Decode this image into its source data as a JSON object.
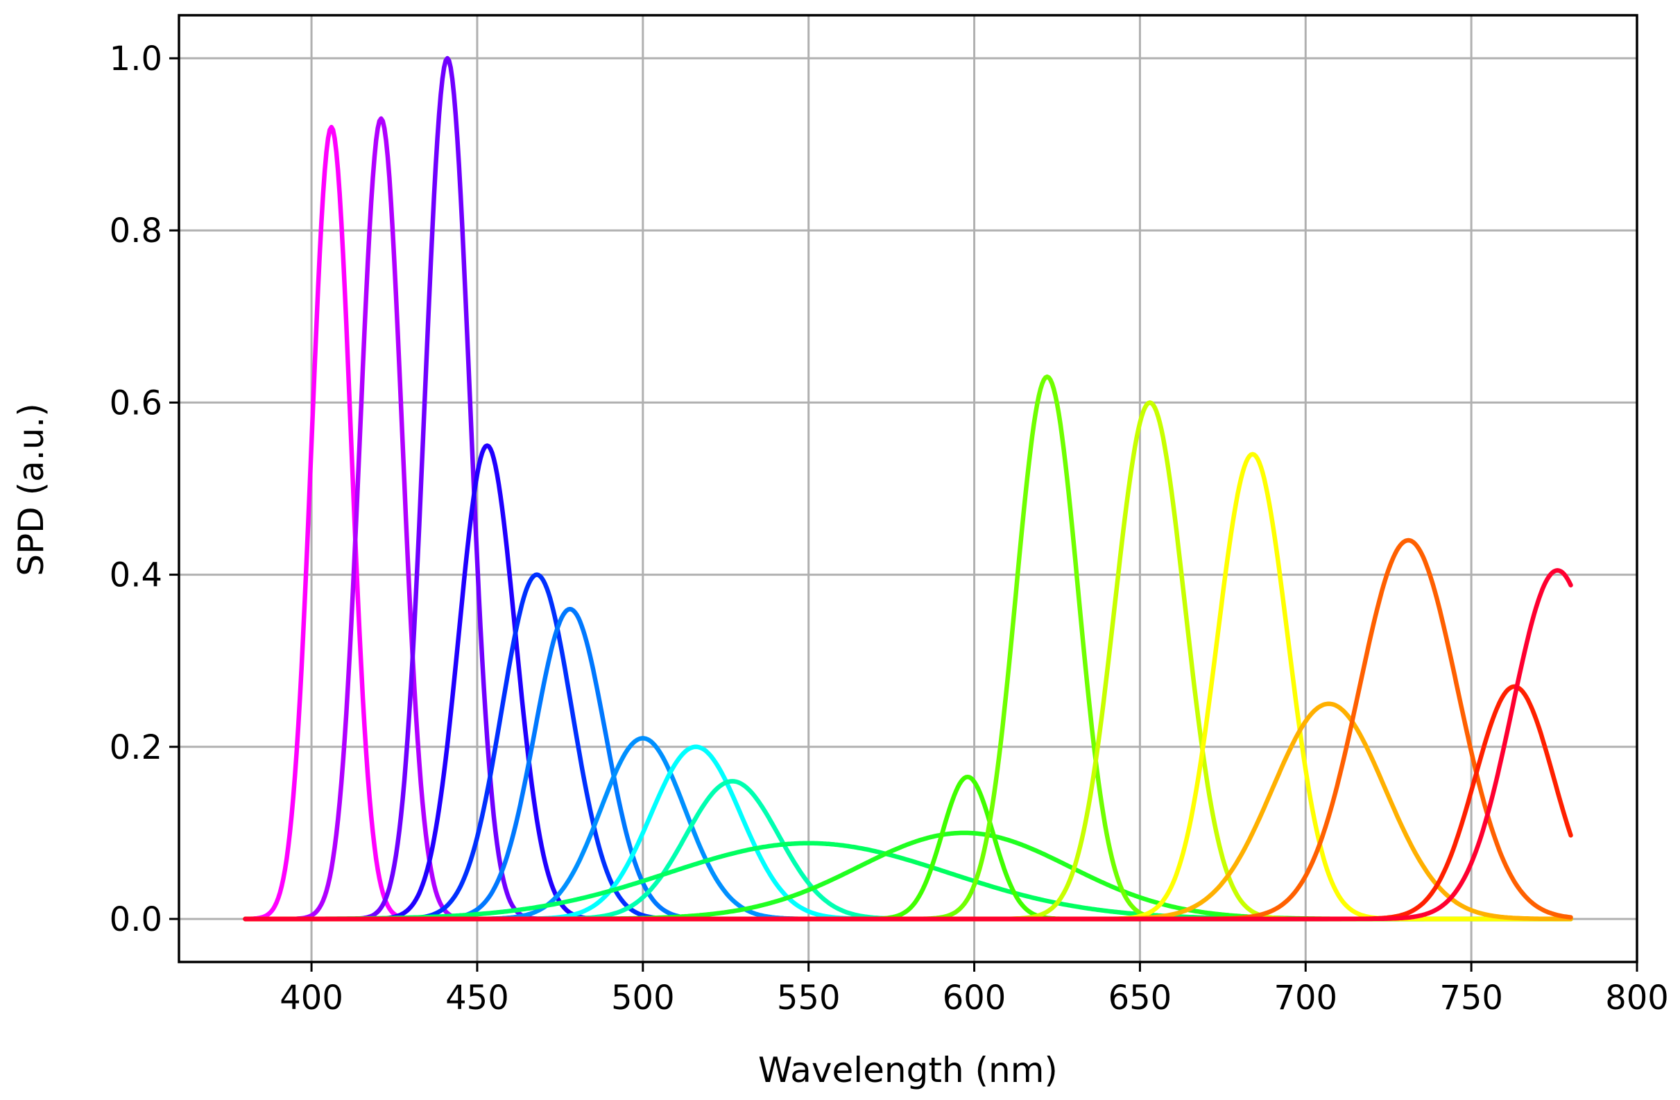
{
  "chart_data": {
    "type": "line",
    "title": "",
    "xlabel": "Wavelength (nm)",
    "ylabel": "SPD (a.u.)",
    "xlim": [
      360,
      800
    ],
    "ylim": [
      -0.05,
      1.05
    ],
    "xticks": [
      400,
      450,
      500,
      550,
      600,
      650,
      700,
      750,
      800
    ],
    "yticks": [
      0.0,
      0.2,
      0.4,
      0.6,
      0.8,
      1.0
    ],
    "xtick_labels": [
      "400",
      "450",
      "500",
      "550",
      "600",
      "650",
      "700",
      "750",
      "800"
    ],
    "ytick_labels": [
      "0.0",
      "0.2",
      "0.4",
      "0.6",
      "0.8",
      "1.0"
    ],
    "grid": true,
    "legend": "none",
    "x_range_of_series": [
      380,
      780
    ],
    "series": [
      {
        "color": "#ff00ff",
        "peak_wavelength": 406,
        "peak_value": 0.92,
        "fwhm": 14
      },
      {
        "color": "#b000ff",
        "peak_wavelength": 421,
        "peak_value": 0.93,
        "fwhm": 15
      },
      {
        "color": "#7000ff",
        "peak_wavelength": 441,
        "peak_value": 1.0,
        "fwhm": 16
      },
      {
        "color": "#2000ff",
        "peak_wavelength": 453,
        "peak_value": 0.55,
        "fwhm": 20
      },
      {
        "color": "#0030ff",
        "peak_wavelength": 468,
        "peak_value": 0.4,
        "fwhm": 25
      },
      {
        "color": "#0078ff",
        "peak_wavelength": 478,
        "peak_value": 0.36,
        "fwhm": 25
      },
      {
        "color": "#0090ff",
        "peak_wavelength": 500,
        "peak_value": 0.21,
        "fwhm": 30
      },
      {
        "color": "#00ffff",
        "peak_wavelength": 516,
        "peak_value": 0.2,
        "fwhm": 32
      },
      {
        "color": "#00ffb0",
        "peak_wavelength": 527,
        "peak_value": 0.16,
        "fwhm": 33
      },
      {
        "color": "#00ff60",
        "peak_wavelength": 550,
        "peak_value": 0.088,
        "fwhm": 100
      },
      {
        "color": "#20ff20",
        "peak_wavelength": 597,
        "peak_value": 0.1,
        "fwhm": 75
      },
      {
        "color": "#40ff00",
        "peak_wavelength": 598,
        "peak_value": 0.165,
        "fwhm": 18
      },
      {
        "color": "#70ff00",
        "peak_wavelength": 622,
        "peak_value": 0.63,
        "fwhm": 22
      },
      {
        "color": "#c8ff00",
        "peak_wavelength": 653,
        "peak_value": 0.6,
        "fwhm": 25
      },
      {
        "color": "#ffff00",
        "peak_wavelength": 684,
        "peak_value": 0.54,
        "fwhm": 25
      },
      {
        "color": "#ffb000",
        "peak_wavelength": 707,
        "peak_value": 0.25,
        "fwhm": 40
      },
      {
        "color": "#ff6000",
        "peak_wavelength": 731,
        "peak_value": 0.44,
        "fwhm": 35
      },
      {
        "color": "#ff2000",
        "peak_wavelength": 763,
        "peak_value": 0.27,
        "fwhm": 28
      },
      {
        "color": "#ff0030",
        "peak_wavelength": 776,
        "peak_value": 0.405,
        "fwhm": 32
      }
    ]
  }
}
